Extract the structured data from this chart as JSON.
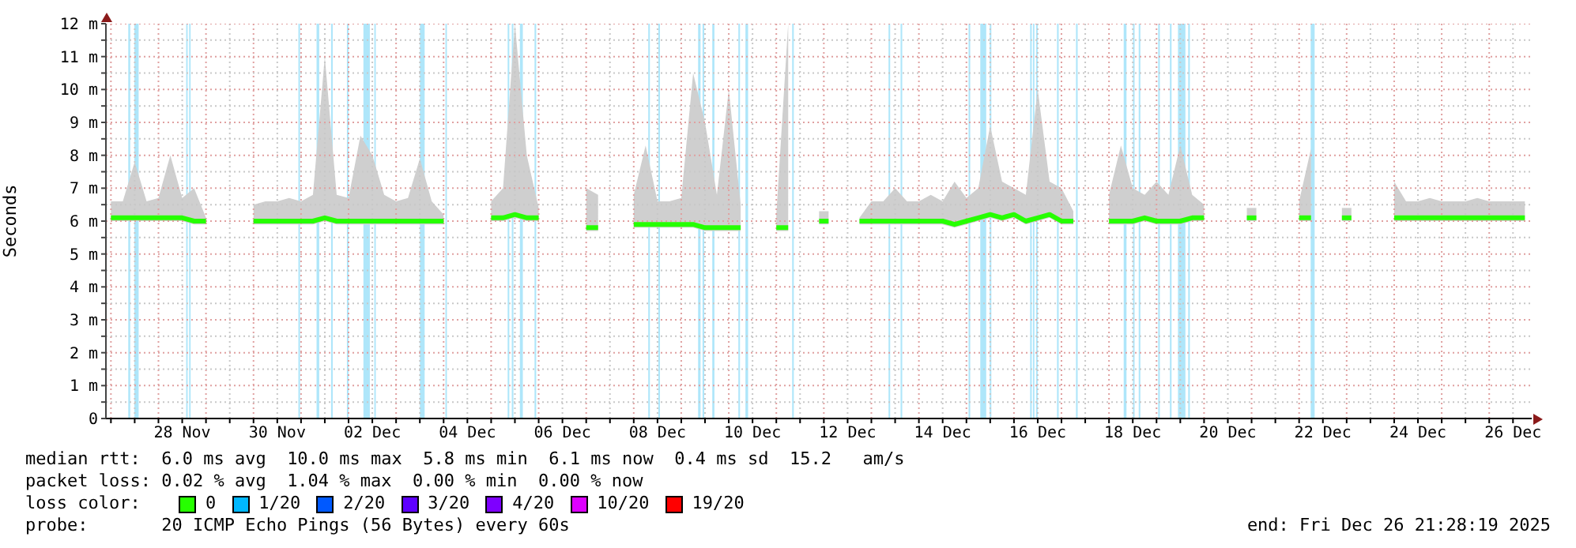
{
  "chart_data": {
    "type": "line",
    "ylabel": "Seconds",
    "legend_title": "loss color:",
    "legend": "bottom",
    "grid": true,
    "annotations": [
      "median rtt:  6.0 ms avg  10.0 ms max  5.8 ms min  6.1 ms now  0.4 ms sd  15.2   am/s",
      "packet loss: 0.02 % avg  1.04 % max  0.00 % min  0.00 % now",
      "probe:       20 ICMP Echo Pings (56 Bytes) every 60s",
      "end: Fri Dec 26 21:28:19 2025"
    ],
    "xlim": [
      "2025-11-26T21:28",
      "2025-12-26T21:28"
    ],
    "ylim": [
      0,
      12
    ],
    "yticks": [
      0,
      {
        "value": 0.5,
        "label": null
      },
      {
        "value": 1,
        "label": "1 m"
      },
      {
        "value": 1.5,
        "label": null
      },
      {
        "value": 2,
        "label": "2 m"
      },
      {
        "value": 2.5,
        "label": null
      },
      {
        "value": 3,
        "label": "3 m"
      },
      {
        "value": 3.5,
        "label": null
      },
      {
        "value": 4,
        "label": "4 m"
      },
      {
        "value": 4.5,
        "label": null
      },
      {
        "value": 5,
        "label": "5 m"
      },
      {
        "value": 5.5,
        "label": null
      },
      {
        "value": 6,
        "label": "6 m"
      },
      {
        "value": 6.5,
        "label": null
      },
      {
        "value": 7,
        "label": "7 m"
      },
      {
        "value": 7.5,
        "label": null
      },
      {
        "value": 8,
        "label": "8 m"
      },
      {
        "value": 8.5,
        "label": null
      },
      {
        "value": 9,
        "label": "9 m"
      },
      {
        "value": 9.5,
        "label": null
      },
      {
        "value": 10,
        "label": "10 m"
      },
      {
        "value": 10.5,
        "label": null
      },
      {
        "value": 11,
        "label": "11 m"
      },
      {
        "value": 11.5,
        "label": null
      },
      {
        "value": 12,
        "label": "12 m"
      }
    ],
    "xticks": [
      {
        "value": "2025-11-27T00:00",
        "label": null
      },
      {
        "value": "2025-11-27T12:00",
        "label": null
      },
      {
        "value": "2025-11-28T00:00",
        "label": null
      },
      {
        "value": "2025-11-28T12:00",
        "label": "28 Nov"
      },
      {
        "value": "2025-11-29T00:00",
        "label": null
      },
      {
        "value": "2025-11-29T12:00",
        "label": null
      },
      {
        "value": "2025-11-30T00:00",
        "label": null
      },
      {
        "value": "2025-11-30T12:00",
        "label": "30 Nov"
      },
      {
        "value": "2025-12-01T00:00",
        "label": null
      },
      {
        "value": "2025-12-01T12:00",
        "label": null
      },
      {
        "value": "2025-12-02T00:00",
        "label": null
      },
      {
        "value": "2025-12-02T12:00",
        "label": "02 Dec"
      },
      {
        "value": "2025-12-03T00:00",
        "label": null
      },
      {
        "value": "2025-12-03T12:00",
        "label": null
      },
      {
        "value": "2025-12-04T00:00",
        "label": null
      },
      {
        "value": "2025-12-04T12:00",
        "label": "04 Dec"
      },
      {
        "value": "2025-12-05T00:00",
        "label": null
      },
      {
        "value": "2025-12-05T12:00",
        "label": null
      },
      {
        "value": "2025-12-06T00:00",
        "label": null
      },
      {
        "value": "2025-12-06T12:00",
        "label": "06 Dec"
      },
      {
        "value": "2025-12-07T00:00",
        "label": null
      },
      {
        "value": "2025-12-07T12:00",
        "label": null
      },
      {
        "value": "2025-12-08T00:00",
        "label": null
      },
      {
        "value": "2025-12-08T12:00",
        "label": "08 Dec"
      },
      {
        "value": "2025-12-09T00:00",
        "label": null
      },
      {
        "value": "2025-12-09T12:00",
        "label": null
      },
      {
        "value": "2025-12-10T00:00",
        "label": null
      },
      {
        "value": "2025-12-10T12:00",
        "label": "10 Dec"
      },
      {
        "value": "2025-12-11T00:00",
        "label": null
      },
      {
        "value": "2025-12-11T12:00",
        "label": null
      },
      {
        "value": "2025-12-12T00:00",
        "label": null
      },
      {
        "value": "2025-12-12T12:00",
        "label": "12 Dec"
      },
      {
        "value": "2025-12-13T00:00",
        "label": null
      },
      {
        "value": "2025-12-13T12:00",
        "label": null
      },
      {
        "value": "2025-12-14T00:00",
        "label": null
      },
      {
        "value": "2025-12-14T12:00",
        "label": "14 Dec"
      },
      {
        "value": "2025-12-15T00:00",
        "label": null
      },
      {
        "value": "2025-12-15T12:00",
        "label": null
      },
      {
        "value": "2025-12-16T00:00",
        "label": null
      },
      {
        "value": "2025-12-16T12:00",
        "label": "16 Dec"
      },
      {
        "value": "2025-12-17T00:00",
        "label": null
      },
      {
        "value": "2025-12-17T12:00",
        "label": null
      },
      {
        "value": "2025-12-18T00:00",
        "label": null
      },
      {
        "value": "2025-12-18T12:00",
        "label": "18 Dec"
      },
      {
        "value": "2025-12-19T00:00",
        "label": null
      },
      {
        "value": "2025-12-19T12:00",
        "label": null
      },
      {
        "value": "2025-12-20T00:00",
        "label": null
      },
      {
        "value": "2025-12-20T12:00",
        "label": "20 Dec"
      },
      {
        "value": "2025-12-21T00:00",
        "label": null
      },
      {
        "value": "2025-12-21T12:00",
        "label": null
      },
      {
        "value": "2025-12-22T00:00",
        "label": null
      },
      {
        "value": "2025-12-22T12:00",
        "label": "22 Dec"
      },
      {
        "value": "2025-12-23T00:00",
        "label": null
      },
      {
        "value": "2025-12-23T12:00",
        "label": null
      },
      {
        "value": "2025-12-24T00:00",
        "label": null
      },
      {
        "value": "2025-12-24T12:00",
        "label": "24 Dec"
      },
      {
        "value": "2025-12-25T00:00",
        "label": null
      },
      {
        "value": "2025-12-25T12:00",
        "label": null
      },
      {
        "value": "2025-12-26T00:00",
        "label": null
      },
      {
        "value": "2025-12-26T12:00",
        "label": "26 Dec"
      }
    ],
    "x": [
      "2025-11-27T00:00",
      "2025-11-27T06:00",
      "2025-11-27T12:00",
      "2025-11-27T18:00",
      "2025-11-28T00:00",
      "2025-11-28T06:00",
      "2025-11-28T12:00",
      "2025-11-28T18:00",
      "2025-11-29T00:00",
      "2025-11-29T06:00",
      "2025-11-29T12:00",
      "2025-11-29T18:00",
      "2025-11-30T00:00",
      "2025-11-30T06:00",
      "2025-11-30T12:00",
      "2025-11-30T18:00",
      "2025-12-01T00:00",
      "2025-12-01T06:00",
      "2025-12-01T12:00",
      "2025-12-01T18:00",
      "2025-12-02T00:00",
      "2025-12-02T06:00",
      "2025-12-02T12:00",
      "2025-12-02T18:00",
      "2025-12-03T00:00",
      "2025-12-03T06:00",
      "2025-12-03T12:00",
      "2025-12-03T18:00",
      "2025-12-04T00:00",
      "2025-12-04T06:00",
      "2025-12-04T12:00",
      "2025-12-04T18:00",
      "2025-12-05T00:00",
      "2025-12-05T06:00",
      "2025-12-05T12:00",
      "2025-12-05T18:00",
      "2025-12-06T00:00",
      "2025-12-06T06:00",
      "2025-12-06T12:00",
      "2025-12-06T18:00",
      "2025-12-07T00:00",
      "2025-12-07T06:00",
      "2025-12-07T12:00",
      "2025-12-07T18:00",
      "2025-12-08T00:00",
      "2025-12-08T06:00",
      "2025-12-08T12:00",
      "2025-12-08T18:00",
      "2025-12-09T00:00",
      "2025-12-09T06:00",
      "2025-12-09T12:00",
      "2025-12-09T18:00",
      "2025-12-10T00:00",
      "2025-12-10T06:00",
      "2025-12-10T12:00",
      "2025-12-10T18:00",
      "2025-12-11T00:00",
      "2025-12-11T06:00",
      "2025-12-11T12:00",
      "2025-12-11T18:00",
      "2025-12-12T00:00",
      "2025-12-12T06:00",
      "2025-12-12T12:00",
      "2025-12-12T18:00",
      "2025-12-13T00:00",
      "2025-12-13T06:00",
      "2025-12-13T12:00",
      "2025-12-13T18:00",
      "2025-12-14T00:00",
      "2025-12-14T06:00",
      "2025-12-14T12:00",
      "2025-12-14T18:00",
      "2025-12-15T00:00",
      "2025-12-15T06:00",
      "2025-12-15T12:00",
      "2025-12-15T18:00",
      "2025-12-16T00:00",
      "2025-12-16T06:00",
      "2025-12-16T12:00",
      "2025-12-16T18:00",
      "2025-12-17T00:00",
      "2025-12-17T06:00",
      "2025-12-17T12:00",
      "2025-12-17T18:00",
      "2025-12-18T00:00",
      "2025-12-18T06:00",
      "2025-12-18T12:00",
      "2025-12-18T18:00",
      "2025-12-19T00:00",
      "2025-12-19T06:00",
      "2025-12-19T12:00",
      "2025-12-19T18:00",
      "2025-12-20T00:00",
      "2025-12-20T06:00",
      "2025-12-20T12:00",
      "2025-12-20T18:00",
      "2025-12-21T00:00",
      "2025-12-21T06:00",
      "2025-12-21T12:00",
      "2025-12-21T18:00",
      "2025-12-22T00:00",
      "2025-12-22T06:00",
      "2025-12-22T12:00",
      "2025-12-22T18:00",
      "2025-12-23T00:00",
      "2025-12-23T06:00",
      "2025-12-23T12:00",
      "2025-12-23T18:00",
      "2025-12-24T00:00",
      "2025-12-24T06:00",
      "2025-12-24T12:00",
      "2025-12-24T18:00",
      "2025-12-25T00:00",
      "2025-12-25T06:00",
      "2025-12-25T12:00",
      "2025-12-25T18:00",
      "2025-12-26T00:00",
      "2025-12-26T06:00",
      "2025-12-26T12:00",
      "2025-12-26T18:00"
    ],
    "series": [
      {
        "name": "0",
        "color": "#26ff00",
        "values": [
          6.1,
          6.1,
          6.1,
          6.1,
          6.1,
          6.1,
          6.1,
          6.0,
          6.0,
          null,
          null,
          null,
          6.0,
          6.0,
          6.0,
          6.0,
          6.0,
          6.0,
          6.1,
          6.0,
          6.0,
          6.0,
          6.0,
          6.0,
          6.0,
          6.0,
          6.0,
          6.0,
          6.0,
          null,
          null,
          null,
          6.1,
          6.1,
          6.2,
          6.1,
          6.1,
          null,
          null,
          null,
          5.8,
          5.8,
          null,
          null,
          5.9,
          5.9,
          5.9,
          5.9,
          5.9,
          5.9,
          5.8,
          5.8,
          5.8,
          5.8,
          null,
          null,
          5.8,
          5.8,
          null,
          null,
          6.0,
          null,
          null,
          6.0,
          6.0,
          6.0,
          6.0,
          6.0,
          6.0,
          6.0,
          6.0,
          5.9,
          6.0,
          6.1,
          6.2,
          6.1,
          6.2,
          6.0,
          6.1,
          6.2,
          6.0,
          6.0,
          null,
          null,
          6.0,
          6.0,
          6.0,
          6.1,
          6.0,
          6.0,
          6.0,
          6.1,
          6.1,
          null,
          null,
          null,
          6.1,
          null,
          null,
          null,
          6.1,
          6.1,
          null,
          null,
          6.1,
          null,
          null,
          null,
          6.1,
          6.1,
          6.1,
          6.1,
          6.1,
          6.1,
          6.1,
          6.1,
          6.1,
          6.1,
          6.1,
          6.1
        ],
        "lower": [
          6.0,
          6.0,
          6.0,
          6.0,
          6.0,
          6.0,
          6.0,
          5.9,
          5.9,
          null,
          null,
          null,
          5.9,
          5.9,
          5.9,
          5.9,
          5.9,
          5.9,
          6.0,
          5.9,
          5.9,
          5.9,
          5.9,
          5.9,
          5.9,
          5.9,
          5.9,
          5.9,
          5.9,
          null,
          null,
          null,
          6.0,
          6.0,
          6.1,
          6.0,
          6.0,
          null,
          null,
          null,
          5.7,
          5.7,
          null,
          null,
          5.8,
          5.8,
          5.8,
          5.8,
          5.8,
          5.8,
          5.7,
          5.7,
          5.7,
          5.7,
          null,
          null,
          5.7,
          5.7,
          null,
          null,
          5.9,
          null,
          null,
          5.9,
          5.9,
          5.9,
          5.9,
          5.9,
          5.9,
          5.9,
          5.9,
          5.8,
          5.9,
          6.0,
          6.1,
          6.0,
          6.1,
          5.9,
          6.0,
          6.1,
          5.9,
          5.9,
          null,
          null,
          5.9,
          5.9,
          5.9,
          6.0,
          5.9,
          5.9,
          5.9,
          6.0,
          6.0,
          null,
          null,
          null,
          6.0,
          null,
          null,
          null,
          6.0,
          6.0,
          null,
          null,
          6.0,
          null,
          null,
          null,
          6.0,
          6.0,
          6.0,
          6.0,
          6.0,
          6.0,
          6.0,
          6.0,
          6.0,
          6.0,
          6.0,
          6.0
        ],
        "upper": [
          6.6,
          6.6,
          7.8,
          6.6,
          6.7,
          8.0,
          6.7,
          7.0,
          6.1,
          null,
          null,
          null,
          6.5,
          6.6,
          6.6,
          6.7,
          6.6,
          6.8,
          11.0,
          6.8,
          6.7,
          8.6,
          8.0,
          6.8,
          6.6,
          6.7,
          7.9,
          6.6,
          6.2,
          null,
          null,
          null,
          6.6,
          7.0,
          12.0,
          8.0,
          6.4,
          null,
          null,
          null,
          7.0,
          6.8,
          null,
          null,
          6.8,
          8.3,
          6.6,
          6.6,
          6.7,
          10.5,
          9.0,
          6.8,
          10.0,
          6.5,
          null,
          null,
          6.2,
          12.0,
          null,
          null,
          6.3,
          null,
          null,
          6.1,
          6.6,
          6.6,
          7.0,
          6.6,
          6.6,
          6.8,
          6.6,
          7.2,
          6.7,
          7.0,
          8.9,
          7.2,
          7.0,
          6.8,
          10.0,
          7.2,
          7.0,
          6.3,
          null,
          null,
          6.8,
          8.3,
          7.0,
          6.8,
          7.2,
          6.8,
          8.3,
          6.8,
          6.5,
          null,
          null,
          null,
          6.4,
          null,
          null,
          null,
          6.6,
          8.2,
          null,
          null,
          6.4,
          null,
          null,
          null,
          7.2,
          6.6,
          6.6,
          6.7,
          6.6,
          6.6,
          6.6,
          6.7,
          6.6,
          6.6,
          6.6,
          6.6
        ]
      },
      {
        "name": "1/20",
        "color": "#00b8ff",
        "values": [
          null,
          null,
          null,
          null,
          null,
          null,
          null,
          null,
          null,
          null,
          null,
          null,
          null,
          null,
          null,
          null,
          null,
          null,
          null,
          null,
          null,
          null,
          null,
          null,
          null,
          null,
          null,
          null,
          null,
          null,
          null,
          null,
          null,
          null,
          null,
          null,
          null,
          null,
          null,
          null,
          null,
          null,
          null,
          null,
          null,
          null,
          null,
          null,
          null,
          null,
          null,
          null,
          null,
          null,
          null,
          null,
          null,
          null,
          null,
          null,
          null,
          null,
          null,
          null,
          null,
          null,
          null,
          null,
          null,
          null,
          null,
          null,
          null,
          null,
          null,
          null,
          null,
          null,
          null,
          null,
          null,
          null,
          null,
          null,
          null,
          null,
          null,
          null,
          null,
          null,
          null,
          null,
          null,
          null,
          null,
          null,
          null,
          null,
          null,
          null,
          null,
          null,
          null,
          null,
          null,
          null,
          null,
          null,
          null,
          null,
          null,
          null,
          null,
          null,
          null,
          null,
          null,
          null,
          null,
          null
        ]
      },
      {
        "name": "2/20",
        "color": "#0059ff",
        "values": [
          null,
          null,
          null,
          null,
          null,
          null,
          null,
          null,
          null,
          null,
          null,
          null,
          null,
          null,
          null,
          null,
          null,
          null,
          null,
          null,
          null,
          null,
          null,
          null,
          null,
          null,
          null,
          null,
          null,
          null,
          null,
          null,
          null,
          null,
          null,
          null,
          null,
          null,
          null,
          null,
          null,
          null,
          null,
          null,
          null,
          null,
          null,
          null,
          null,
          null,
          null,
          null,
          null,
          null,
          null,
          null,
          null,
          null,
          null,
          null,
          null,
          null,
          null,
          null,
          null,
          null,
          null,
          null,
          null,
          null,
          null,
          null,
          null,
          null,
          null,
          null,
          null,
          null,
          null,
          null,
          null,
          null,
          null,
          null,
          null,
          null,
          null,
          null,
          null,
          null,
          null,
          null,
          null,
          null,
          null,
          null,
          null,
          null,
          null,
          null,
          null,
          null,
          null,
          null,
          null,
          null,
          null,
          null,
          null,
          null,
          null,
          null,
          null,
          null,
          null,
          null,
          null,
          null,
          null,
          null
        ]
      },
      {
        "name": "3/20",
        "color": "#5e00ff",
        "values": [
          null,
          null,
          null,
          null,
          null,
          null,
          null,
          null,
          null,
          null,
          null,
          null,
          null,
          null,
          null,
          null,
          null,
          null,
          null,
          null,
          null,
          null,
          null,
          null,
          null,
          null,
          null,
          null,
          null,
          null,
          null,
          null,
          null,
          null,
          null,
          null,
          null,
          null,
          null,
          null,
          null,
          null,
          null,
          null,
          null,
          null,
          null,
          null,
          null,
          null,
          null,
          null,
          null,
          null,
          null,
          null,
          null,
          null,
          null,
          null,
          null,
          null,
          null,
          null,
          null,
          null,
          null,
          null,
          null,
          null,
          null,
          null,
          null,
          null,
          null,
          null,
          null,
          null,
          null,
          null,
          null,
          null,
          null,
          null,
          null,
          null,
          null,
          null,
          null,
          null,
          null,
          null,
          null,
          null,
          null,
          null,
          null,
          null,
          null,
          null,
          null,
          null,
          null,
          null,
          null,
          null,
          null,
          null,
          null,
          null,
          null,
          null,
          null,
          null,
          null,
          null,
          null,
          null,
          null,
          null
        ]
      },
      {
        "name": "4/20",
        "color": "#7e00ff",
        "values": [
          null,
          null,
          null,
          null,
          null,
          null,
          null,
          null,
          null,
          null,
          null,
          null,
          null,
          null,
          null,
          null,
          null,
          null,
          null,
          null,
          null,
          null,
          null,
          null,
          null,
          null,
          null,
          null,
          null,
          null,
          null,
          null,
          null,
          null,
          null,
          null,
          null,
          null,
          null,
          null,
          null,
          null,
          null,
          null,
          null,
          null,
          null,
          null,
          null,
          null,
          null,
          null,
          null,
          null,
          null,
          null,
          null,
          null,
          null,
          null,
          null,
          null,
          null,
          null,
          null,
          null,
          null,
          null,
          null,
          null,
          null,
          null,
          null,
          null,
          null,
          null,
          null,
          null,
          null,
          null,
          null,
          null,
          null,
          null,
          null,
          null,
          null,
          null,
          null,
          null,
          null,
          null,
          null,
          null,
          null,
          null,
          null,
          null,
          null,
          null,
          null,
          null,
          null,
          null,
          null,
          null,
          null,
          null,
          null,
          null,
          null,
          null,
          null,
          null,
          null,
          null,
          null,
          null,
          null,
          null
        ]
      },
      {
        "name": "10/20",
        "color": "#dd00ff",
        "values": [
          null,
          null,
          null,
          null,
          null,
          null,
          null,
          null,
          null,
          null,
          null,
          null,
          null,
          null,
          null,
          null,
          null,
          null,
          null,
          null,
          null,
          null,
          null,
          null,
          null,
          null,
          null,
          null,
          null,
          null,
          null,
          null,
          null,
          null,
          null,
          null,
          null,
          null,
          null,
          null,
          null,
          null,
          null,
          null,
          null,
          null,
          null,
          null,
          null,
          null,
          null,
          null,
          null,
          null,
          null,
          null,
          null,
          null,
          null,
          null,
          null,
          null,
          null,
          null,
          null,
          null,
          null,
          null,
          null,
          null,
          null,
          null,
          null,
          null,
          null,
          null,
          null,
          null,
          null,
          null,
          null,
          null,
          null,
          null,
          null,
          null,
          null,
          null,
          null,
          null,
          null,
          null,
          null,
          null,
          null,
          null,
          null,
          null,
          null,
          null,
          null,
          null,
          null,
          null,
          null,
          null,
          null,
          null,
          null,
          null,
          null,
          null,
          null,
          null,
          null,
          null,
          null,
          null,
          null,
          null
        ]
      },
      {
        "name": "19/20",
        "color": "#ff0000",
        "values": [
          null,
          null,
          null,
          null,
          null,
          null,
          null,
          null,
          null,
          null,
          null,
          null,
          null,
          null,
          null,
          null,
          null,
          null,
          null,
          null,
          null,
          null,
          null,
          null,
          null,
          null,
          null,
          null,
          null,
          null,
          null,
          null,
          null,
          null,
          null,
          null,
          null,
          null,
          null,
          null,
          null,
          null,
          null,
          null,
          null,
          null,
          null,
          null,
          null,
          null,
          null,
          null,
          null,
          null,
          null,
          null,
          null,
          null,
          null,
          null,
          null,
          null,
          null,
          null,
          null,
          null,
          null,
          null,
          null,
          null,
          null,
          null,
          null,
          null,
          null,
          null,
          null,
          null,
          null,
          null,
          null,
          null,
          null,
          null,
          null,
          null,
          null,
          null,
          null,
          null,
          null,
          null,
          null,
          null,
          null,
          null,
          null,
          null,
          null,
          null,
          null,
          null,
          null,
          null,
          null,
          null,
          null,
          null,
          null,
          null,
          null,
          null,
          null,
          null,
          null,
          null,
          null,
          null,
          null,
          null
        ]
      }
    ],
    "bands": [
      {
        "axis": "x",
        "from": "2025-11-27T08:45",
        "to": "2025-11-27T09:45",
        "color": "#aee6fa"
      },
      {
        "axis": "x",
        "from": "2025-11-27T11:50",
        "to": "2025-11-27T14:00",
        "color": "#aee6fa"
      },
      {
        "axis": "x",
        "from": "2025-11-28T14:00",
        "to": "2025-11-28T14:45",
        "color": "#aee6fa"
      },
      {
        "axis": "x",
        "from": "2025-11-28T15:30",
        "to": "2025-11-28T16:15",
        "color": "#aee6fa"
      },
      {
        "axis": "x",
        "from": "2025-11-30T22:40",
        "to": "2025-11-30T23:30",
        "color": "#aee6fa"
      },
      {
        "axis": "x",
        "from": "2025-12-01T07:50",
        "to": "2025-12-01T09:10",
        "color": "#aee6fa"
      },
      {
        "axis": "x",
        "from": "2025-12-01T15:10",
        "to": "2025-12-01T16:00",
        "color": "#aee6fa"
      },
      {
        "axis": "x",
        "from": "2025-12-01T23:10",
        "to": "2025-12-02T00:00",
        "color": "#aee6fa"
      },
      {
        "axis": "x",
        "from": "2025-12-02T07:30",
        "to": "2025-12-02T10:45",
        "color": "#aee6fa"
      },
      {
        "axis": "x",
        "from": "2025-12-02T13:00",
        "to": "2025-12-02T13:45",
        "color": "#aee6fa"
      },
      {
        "axis": "x",
        "from": "2025-12-03T12:00",
        "to": "2025-12-03T14:25",
        "color": "#aee6fa"
      },
      {
        "axis": "x",
        "from": "2025-12-04T00:55",
        "to": "2025-12-04T01:40",
        "color": "#aee6fa"
      },
      {
        "axis": "x",
        "from": "2025-12-05T08:20",
        "to": "2025-12-05T09:10",
        "color": "#aee6fa"
      },
      {
        "axis": "x",
        "from": "2025-12-05T10:25",
        "to": "2025-12-05T11:15",
        "color": "#aee6fa"
      },
      {
        "axis": "x",
        "from": "2025-12-05T14:30",
        "to": "2025-12-05T16:00",
        "color": "#aee6fa"
      },
      {
        "axis": "x",
        "from": "2025-12-05T21:55",
        "to": "2025-12-05T22:45",
        "color": "#aee6fa"
      },
      {
        "axis": "x",
        "from": "2025-12-08T07:20",
        "to": "2025-12-08T08:10",
        "color": "#aee6fa"
      },
      {
        "axis": "x",
        "from": "2025-12-08T12:25",
        "to": "2025-12-08T13:15",
        "color": "#aee6fa"
      },
      {
        "axis": "x",
        "from": "2025-12-09T08:30",
        "to": "2025-12-09T09:45",
        "color": "#aee6fa"
      },
      {
        "axis": "x",
        "from": "2025-12-09T10:45",
        "to": "2025-12-09T11:35",
        "color": "#aee6fa"
      },
      {
        "axis": "x",
        "from": "2025-12-09T15:40",
        "to": "2025-12-09T16:45",
        "color": "#aee6fa"
      },
      {
        "axis": "x",
        "from": "2025-12-10T04:50",
        "to": "2025-12-10T05:40",
        "color": "#aee6fa"
      },
      {
        "axis": "x",
        "from": "2025-12-10T08:25",
        "to": "2025-12-10T09:45",
        "color": "#aee6fa"
      },
      {
        "axis": "x",
        "from": "2025-12-11T08:00",
        "to": "2025-12-11T08:50",
        "color": "#aee6fa"
      },
      {
        "axis": "x",
        "from": "2025-12-13T08:40",
        "to": "2025-12-13T09:30",
        "color": "#aee6fa"
      },
      {
        "axis": "x",
        "from": "2025-12-13T14:45",
        "to": "2025-12-13T15:35",
        "color": "#aee6fa"
      },
      {
        "axis": "x",
        "from": "2025-12-15T01:05",
        "to": "2025-12-15T01:55",
        "color": "#aee6fa"
      },
      {
        "axis": "x",
        "from": "2025-12-15T07:00",
        "to": "2025-12-15T10:00",
        "color": "#aee6fa"
      },
      {
        "axis": "x",
        "from": "2025-12-15T11:45",
        "to": "2025-12-15T12:35",
        "color": "#aee6fa"
      },
      {
        "axis": "x",
        "from": "2025-12-16T08:10",
        "to": "2025-12-16T09:00",
        "color": "#aee6fa"
      },
      {
        "axis": "x",
        "from": "2025-12-16T09:35",
        "to": "2025-12-16T10:20",
        "color": "#aee6fa"
      },
      {
        "axis": "x",
        "from": "2025-12-16T11:10",
        "to": "2025-12-16T12:00",
        "color": "#aee6fa"
      },
      {
        "axis": "x",
        "from": "2025-12-16T21:45",
        "to": "2025-12-16T22:35",
        "color": "#aee6fa"
      },
      {
        "axis": "x",
        "from": "2025-12-17T07:20",
        "to": "2025-12-17T08:10",
        "color": "#aee6fa"
      },
      {
        "axis": "x",
        "from": "2025-12-18T07:25",
        "to": "2025-12-18T08:50",
        "color": "#aee6fa"
      },
      {
        "axis": "x",
        "from": "2025-12-18T12:05",
        "to": "2025-12-18T12:55",
        "color": "#aee6fa"
      },
      {
        "axis": "x",
        "from": "2025-12-18T15:00",
        "to": "2025-12-18T15:50",
        "color": "#aee6fa"
      },
      {
        "axis": "x",
        "from": "2025-12-19T00:50",
        "to": "2025-12-19T01:40",
        "color": "#aee6fa"
      },
      {
        "axis": "x",
        "from": "2025-12-19T06:45",
        "to": "2025-12-19T07:35",
        "color": "#aee6fa"
      },
      {
        "axis": "x",
        "from": "2025-12-19T10:50",
        "to": "2025-12-19T14:35",
        "color": "#aee6fa"
      },
      {
        "axis": "x",
        "from": "2025-12-19T16:00",
        "to": "2025-12-19T16:50",
        "color": "#aee6fa"
      },
      {
        "axis": "x",
        "from": "2025-12-22T05:50",
        "to": "2025-12-22T07:50",
        "color": "#aee6fa"
      }
    ]
  }
}
